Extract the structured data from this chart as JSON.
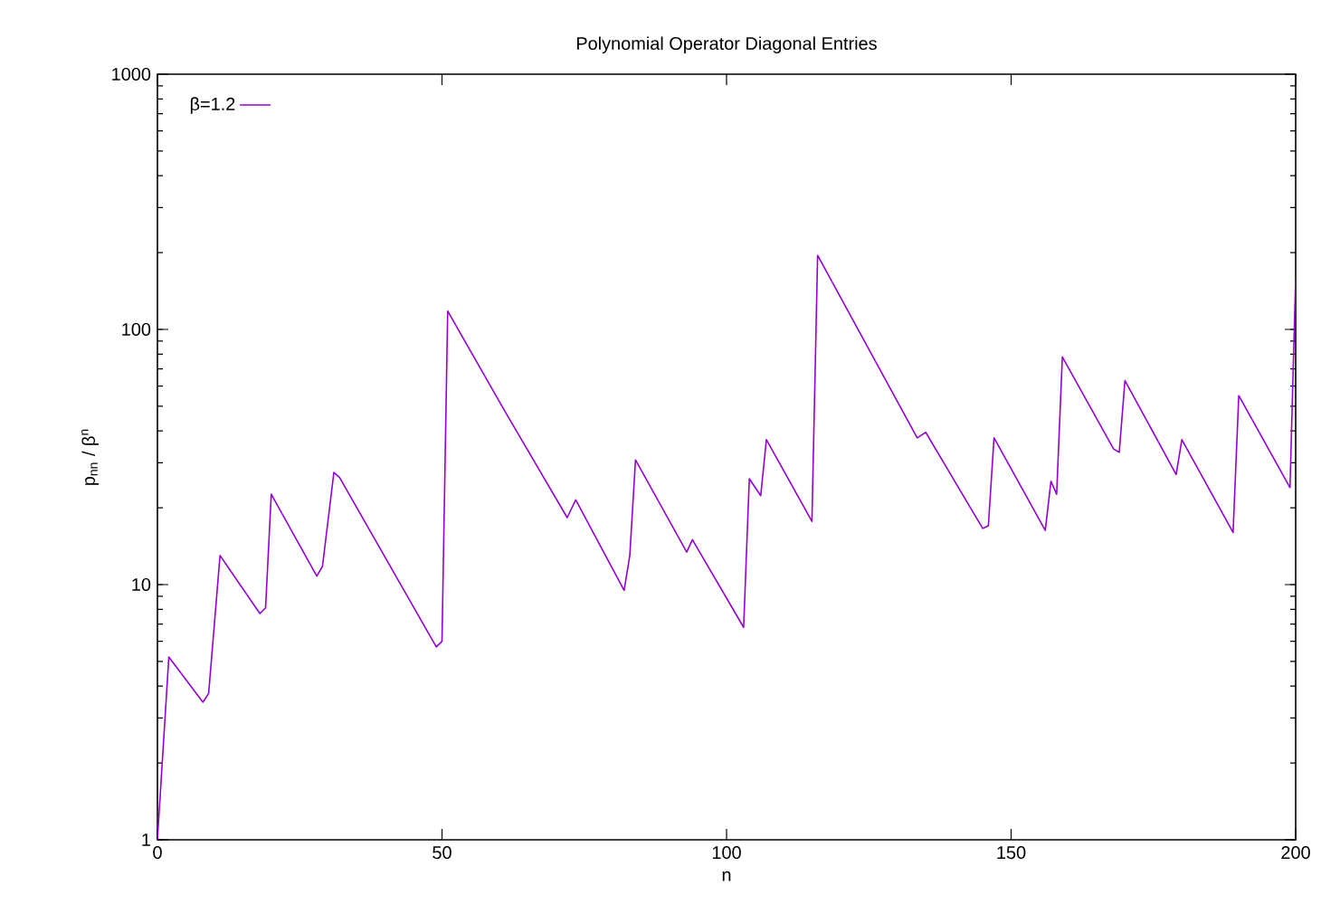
{
  "chart_data": {
    "type": "line",
    "title": "Polynomial Operator Diagonal Entries",
    "xlabel": "n",
    "ylabel": "p$_{nn}$ / β$^{n}$",
    "x": [
      0,
      2,
      8,
      9,
      11,
      18,
      19,
      20,
      28,
      29,
      31,
      32,
      49,
      50,
      51,
      61,
      62,
      72,
      73.5,
      82,
      83,
      84,
      93,
      94,
      103,
      104,
      106,
      107,
      115,
      116,
      133.5,
      135,
      145,
      146,
      147,
      156,
      157,
      158,
      159,
      168,
      169,
      170,
      179,
      180,
      189,
      190,
      199,
      200
    ],
    "series": [
      {
        "name": "β=1.2",
        "color": "#9400d3",
        "values": [
          1,
          5.2,
          3.46,
          3.75,
          13,
          7.7,
          8.1,
          22.6,
          10.8,
          11.8,
          27.5,
          26.3,
          5.7,
          6.0,
          118,
          48,
          44,
          18.3,
          21.5,
          9.5,
          13,
          30.8,
          13.4,
          15,
          6.8,
          26,
          22.3,
          37,
          17.7,
          195,
          37.6,
          39.5,
          16.6,
          17,
          37.6,
          16.3,
          25.4,
          22.6,
          78,
          34,
          33,
          63,
          27,
          37,
          16,
          55,
          24,
          160
        ]
      }
    ],
    "xlim": [
      0,
      200
    ],
    "xticks": [
      0,
      50,
      100,
      150,
      200
    ],
    "ylim": [
      1,
      1000
    ],
    "yticks": [
      1,
      10,
      100,
      1000
    ],
    "log": "y",
    "grid": false,
    "legend": "top left",
    "marker": "none",
    "line_style": "solid"
  }
}
